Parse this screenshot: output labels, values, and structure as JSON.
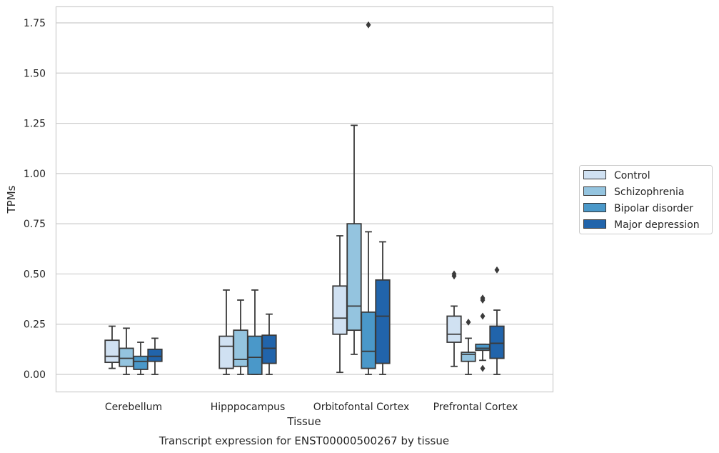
{
  "chart_data": {
    "type": "boxplot",
    "xlabel": "Tissue",
    "ylabel": "TPMs",
    "caption": "Transcript expression for ENST00000500267 by tissue",
    "ylim": [
      -0.085,
      1.83
    ],
    "yticks": [
      0.0,
      0.25,
      0.5,
      0.75,
      1.0,
      1.25,
      1.5,
      1.75
    ],
    "ytick_labels": [
      "0.00",
      "0.25",
      "0.50",
      "0.75",
      "1.00",
      "1.25",
      "1.50",
      "1.75"
    ],
    "grid": true,
    "legend_position": "right",
    "categories": [
      "Cerebellum",
      "Hipppocampus",
      "Orbitofontal Cortex",
      "Prefrontal Cortex"
    ],
    "series": [
      {
        "name": "Control",
        "color": "#d0e1f2",
        "boxes": [
          {
            "whislo": 0.03,
            "q1": 0.06,
            "med": 0.09,
            "q3": 0.17,
            "whishi": 0.24,
            "fliers": []
          },
          {
            "whislo": 0.0,
            "q1": 0.03,
            "med": 0.14,
            "q3": 0.19,
            "whishi": 0.42,
            "fliers": []
          },
          {
            "whislo": 0.01,
            "q1": 0.2,
            "med": 0.28,
            "q3": 0.44,
            "whishi": 0.69,
            "fliers": []
          },
          {
            "whislo": 0.04,
            "q1": 0.16,
            "med": 0.2,
            "q3": 0.29,
            "whishi": 0.34,
            "fliers": [
              0.49,
              0.5
            ]
          }
        ]
      },
      {
        "name": "Schizophrenia",
        "color": "#94c4df",
        "boxes": [
          {
            "whislo": 0.0,
            "q1": 0.04,
            "med": 0.08,
            "q3": 0.13,
            "whishi": 0.23,
            "fliers": []
          },
          {
            "whislo": 0.0,
            "q1": 0.04,
            "med": 0.075,
            "q3": 0.22,
            "whishi": 0.37,
            "fliers": []
          },
          {
            "whislo": 0.1,
            "q1": 0.22,
            "med": 0.34,
            "q3": 0.75,
            "whishi": 1.24,
            "fliers": []
          },
          {
            "whislo": 0.0,
            "q1": 0.065,
            "med": 0.1,
            "q3": 0.11,
            "whishi": 0.18,
            "fliers": [
              0.26
            ]
          }
        ]
      },
      {
        "name": "Bipolar disorder",
        "color": "#4a98c9",
        "boxes": [
          {
            "whislo": 0.0,
            "q1": 0.025,
            "med": 0.065,
            "q3": 0.09,
            "whishi": 0.16,
            "fliers": []
          },
          {
            "whislo": 0.0,
            "q1": 0.0,
            "med": 0.085,
            "q3": 0.19,
            "whishi": 0.42,
            "fliers": []
          },
          {
            "whislo": 0.0,
            "q1": 0.03,
            "med": 0.115,
            "q3": 0.31,
            "whishi": 0.71,
            "fliers": [
              1.74
            ]
          },
          {
            "whislo": 0.07,
            "q1": 0.12,
            "med": 0.13,
            "q3": 0.15,
            "whishi": 0.15,
            "fliers": [
              0.03,
              0.29,
              0.37,
              0.38
            ]
          }
        ]
      },
      {
        "name": "Major depression",
        "color": "#2164ab",
        "boxes": [
          {
            "whislo": 0.0,
            "q1": 0.065,
            "med": 0.09,
            "q3": 0.125,
            "whishi": 0.18,
            "fliers": []
          },
          {
            "whislo": 0.0,
            "q1": 0.055,
            "med": 0.13,
            "q3": 0.195,
            "whishi": 0.3,
            "fliers": []
          },
          {
            "whislo": 0.0,
            "q1": 0.055,
            "med": 0.29,
            "q3": 0.47,
            "whishi": 0.66,
            "fliers": []
          },
          {
            "whislo": 0.0,
            "q1": 0.08,
            "med": 0.155,
            "q3": 0.24,
            "whishi": 0.32,
            "fliers": [
              0.52
            ]
          }
        ]
      }
    ],
    "colors": {
      "grid": "#cccccc",
      "frame": "#cccccc",
      "lines": "#3a3a3a"
    }
  }
}
